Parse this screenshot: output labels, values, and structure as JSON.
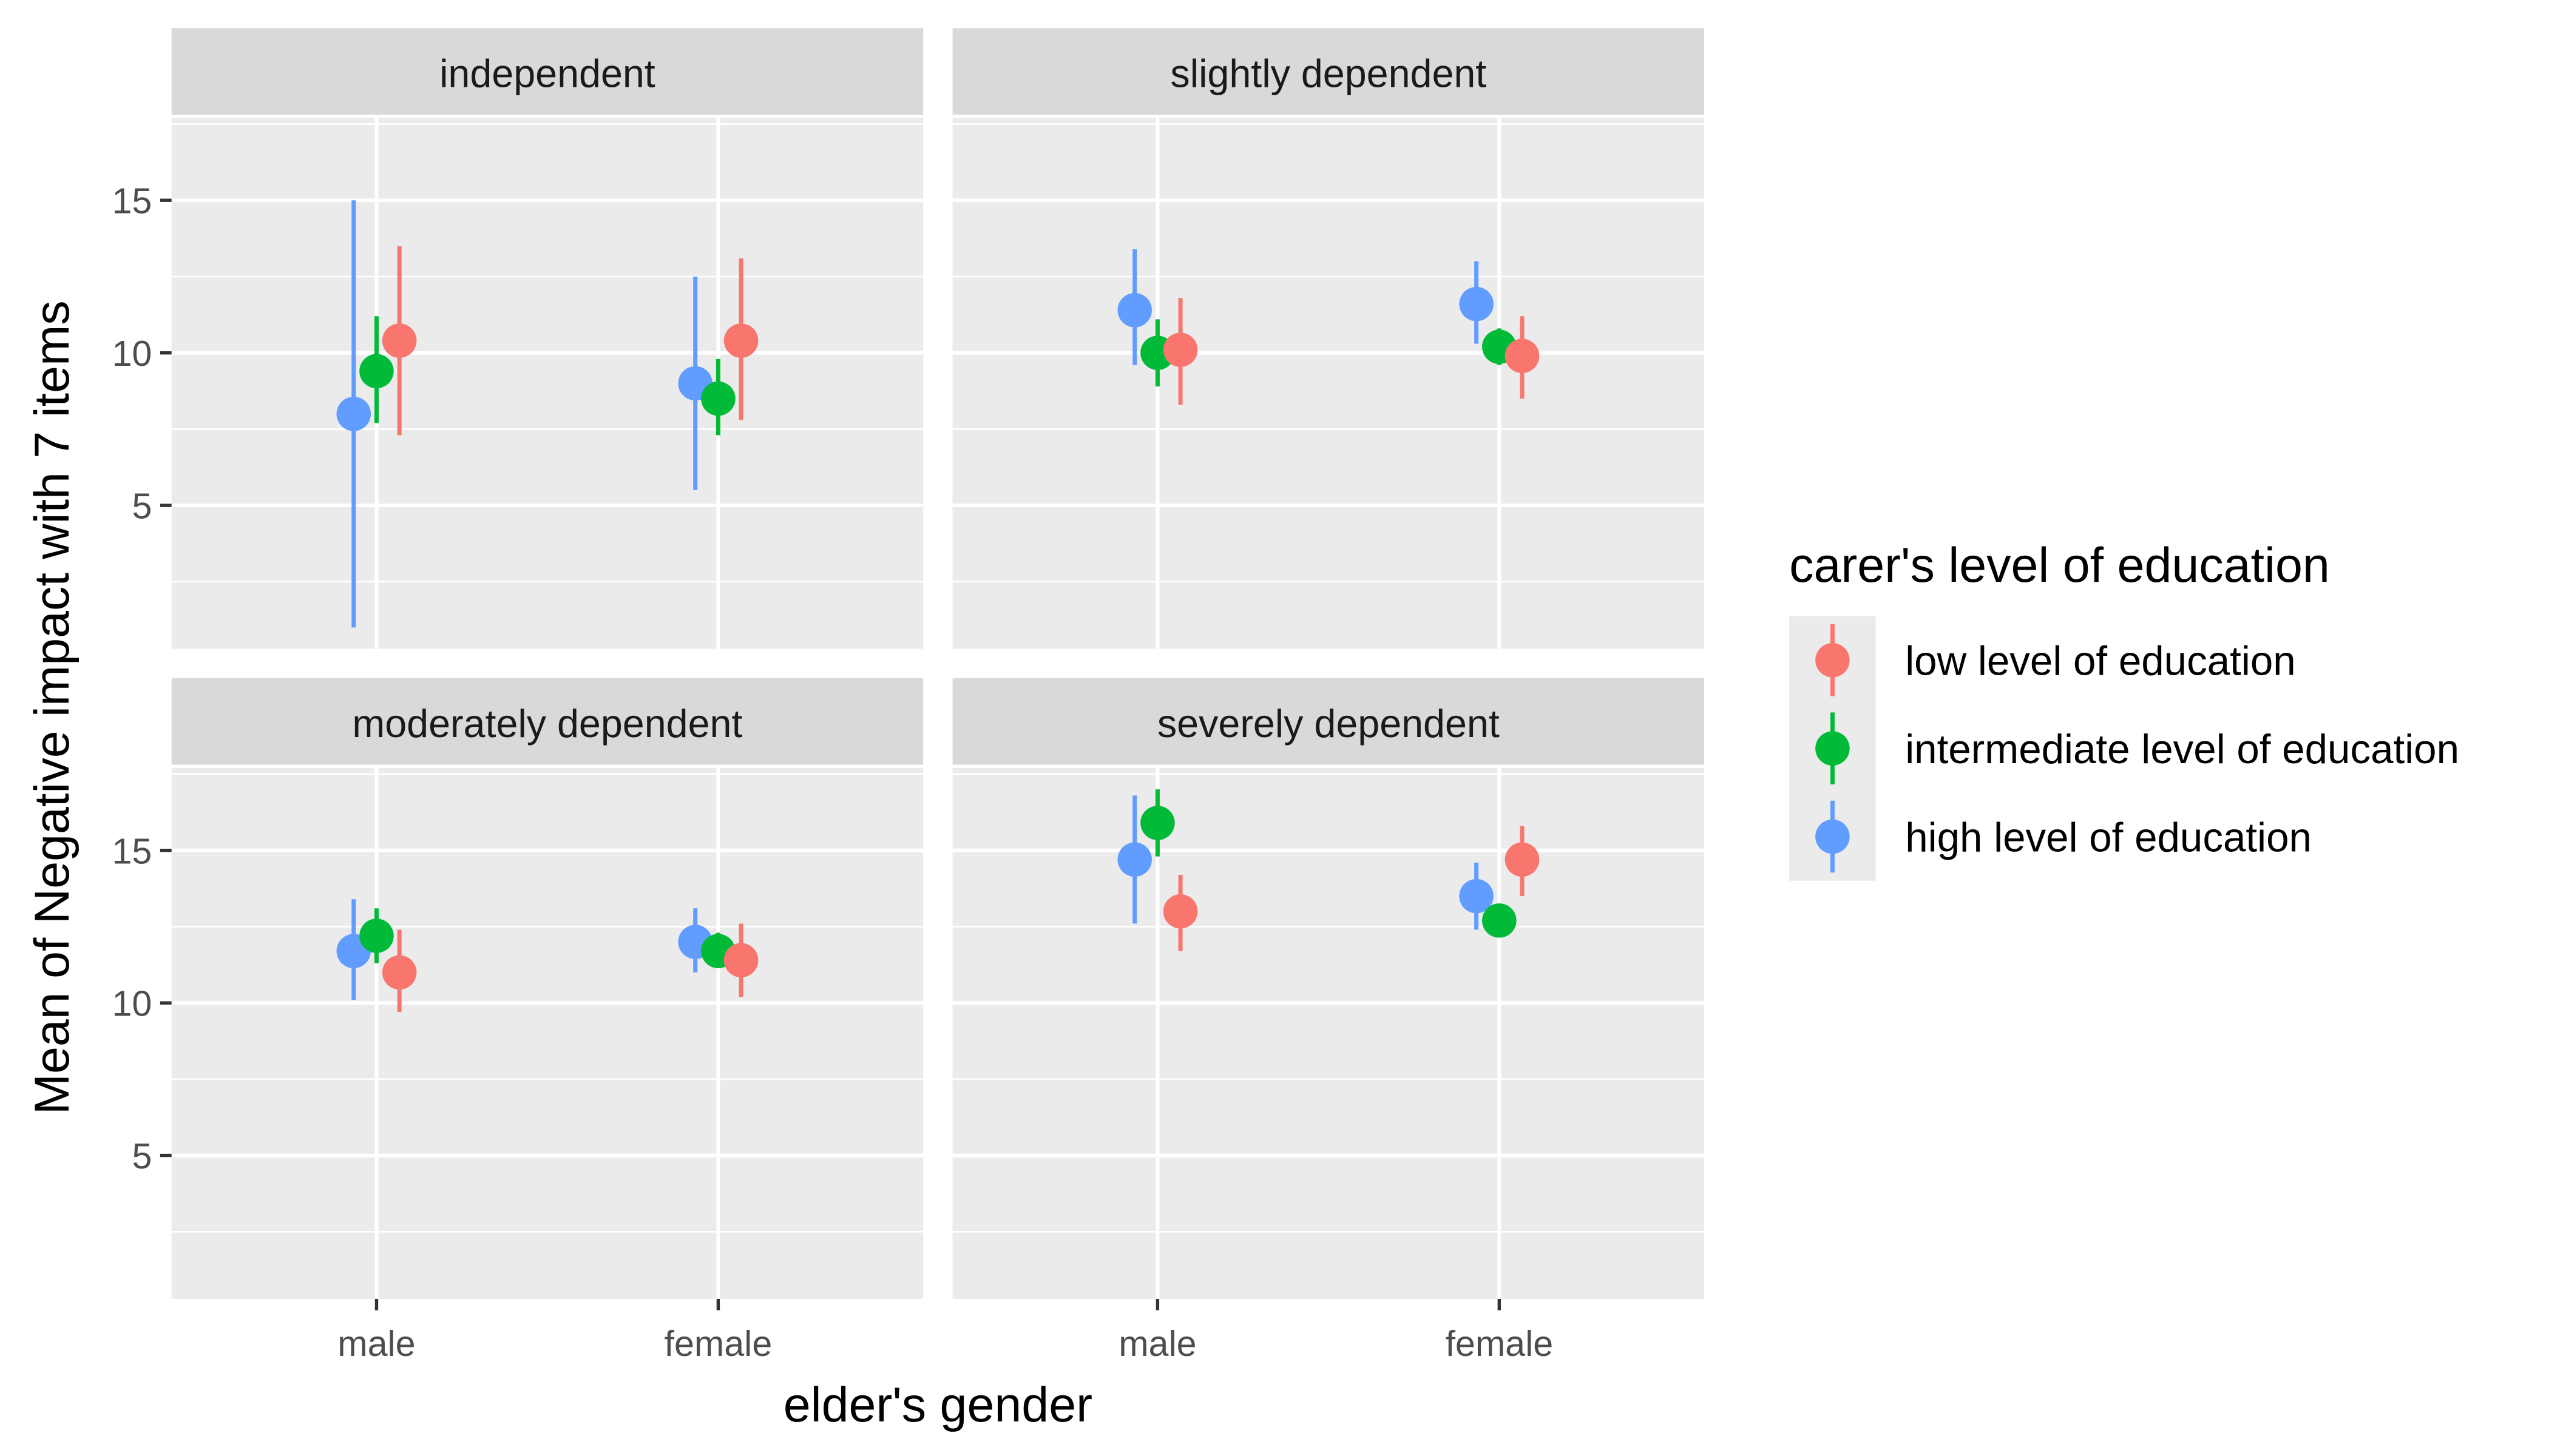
{
  "chart_data": {
    "type": "scatter",
    "subtype": "pointrange, faceted",
    "xlabel": "elder's gender",
    "ylabel": "Mean of Negative impact with 7 items",
    "categories": [
      "male",
      "female"
    ],
    "yticks": [
      5,
      10,
      15
    ],
    "ylim": [
      0.3,
      17.7
    ],
    "grid": true,
    "legend": {
      "title": "carer's level of education",
      "placement": "right",
      "entries": [
        "low level of education",
        "intermediate level of education",
        "high level of education"
      ]
    },
    "colors": {
      "low level of education": "#F8766D",
      "intermediate level of education": "#00BA38",
      "high level of education": "#619CFF"
    },
    "facets": [
      {
        "title": "independent",
        "series": [
          {
            "name": "high level of education",
            "mean": [
              8.0,
              9.0
            ],
            "lower": [
              1.0,
              5.5
            ],
            "upper": [
              15.0,
              12.5
            ]
          },
          {
            "name": "intermediate level of education",
            "mean": [
              9.4,
              8.5
            ],
            "lower": [
              7.7,
              7.3
            ],
            "upper": [
              11.2,
              9.8
            ]
          },
          {
            "name": "low level of education",
            "mean": [
              10.4,
              10.4
            ],
            "lower": [
              7.3,
              7.8
            ],
            "upper": [
              13.5,
              13.1
            ]
          }
        ]
      },
      {
        "title": "slightly dependent",
        "series": [
          {
            "name": "high level of education",
            "mean": [
              11.4,
              11.6
            ],
            "lower": [
              9.6,
              10.3
            ],
            "upper": [
              13.4,
              13.0
            ]
          },
          {
            "name": "intermediate level of education",
            "mean": [
              10.0,
              10.2
            ],
            "lower": [
              8.9,
              9.6
            ],
            "upper": [
              11.1,
              10.8
            ]
          },
          {
            "name": "low level of education",
            "mean": [
              10.1,
              9.9
            ],
            "lower": [
              8.3,
              8.5
            ],
            "upper": [
              11.8,
              11.2
            ]
          }
        ]
      },
      {
        "title": "moderately dependent",
        "series": [
          {
            "name": "high level of education",
            "mean": [
              11.7,
              12.0
            ],
            "lower": [
              10.1,
              11.0
            ],
            "upper": [
              13.4,
              13.1
            ]
          },
          {
            "name": "intermediate level of education",
            "mean": [
              12.2,
              11.7
            ],
            "lower": [
              11.3,
              11.2
            ],
            "upper": [
              13.1,
              12.3
            ]
          },
          {
            "name": "low level of education",
            "mean": [
              11.0,
              11.4
            ],
            "lower": [
              9.7,
              10.2
            ],
            "upper": [
              12.4,
              12.6
            ]
          }
        ]
      },
      {
        "title": "severely dependent",
        "series": [
          {
            "name": "high level of education",
            "mean": [
              14.7,
              13.5
            ],
            "lower": [
              12.6,
              12.4
            ],
            "upper": [
              16.8,
              14.6
            ]
          },
          {
            "name": "intermediate level of education",
            "mean": [
              15.9,
              12.7
            ],
            "lower": [
              14.8,
              12.4
            ],
            "upper": [
              17.0,
              13.0
            ]
          },
          {
            "name": "low level of education",
            "mean": [
              13.0,
              14.7
            ],
            "lower": [
              11.7,
              13.5
            ],
            "upper": [
              14.2,
              15.8
            ]
          }
        ]
      }
    ]
  }
}
